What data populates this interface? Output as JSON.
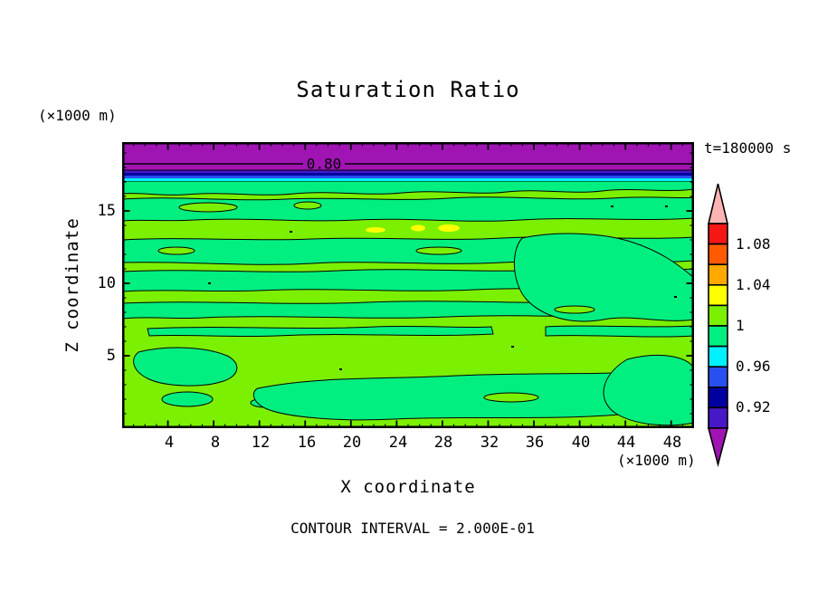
{
  "title": "Saturation Ratio",
  "timestamp": "t=180000 s",
  "contour_label": "0.80",
  "footer_note": "CONTOUR INTERVAL = 2.000E-01",
  "axes": {
    "x": {
      "title": "X coordinate",
      "units": "(×1000 m)",
      "ticks": [
        "4",
        "8",
        "12",
        "16",
        "20",
        "24",
        "28",
        "32",
        "36",
        "40",
        "44",
        "48"
      ]
    },
    "y": {
      "title": "Z coordinate",
      "units": "(×1000 m)",
      "ticks": [
        "15",
        "10",
        "5"
      ]
    }
  },
  "colorbar": {
    "labels": [
      "1.08",
      "1.04",
      "1",
      "0.96",
      "0.92"
    ],
    "segments": [
      {
        "name": "arrow-up",
        "color": "#FFB4B4",
        "range": "> 1.10"
      },
      {
        "name": "red",
        "color": "#F51616",
        "range": "1.08 - 1.10"
      },
      {
        "name": "orange-red",
        "color": "#FF5A00",
        "range": "1.06 - 1.08"
      },
      {
        "name": "orange",
        "color": "#FFA800",
        "range": "1.04 - 1.06"
      },
      {
        "name": "yellow",
        "color": "#FFFF00",
        "range": "1.02 - 1.04"
      },
      {
        "name": "chartreuse",
        "color": "#7BF000",
        "range": "1.00 - 1.02"
      },
      {
        "name": "spring-green",
        "color": "#00EF80",
        "range": "0.98 - 1.00"
      },
      {
        "name": "cyan",
        "color": "#00F0FF",
        "range": "0.96 - 0.98"
      },
      {
        "name": "blue",
        "color": "#2850F0",
        "range": "0.94 - 0.96"
      },
      {
        "name": "navy",
        "color": "#0000A0",
        "range": "0.92 - 0.94"
      },
      {
        "name": "indigo",
        "color": "#4618C8",
        "range": "0.90 - 0.92"
      },
      {
        "name": "arrow-down",
        "color": "#A014B4",
        "range": "< 0.90"
      }
    ]
  },
  "chart_data": {
    "type": "heatmap",
    "subtype": "filled-contour",
    "title": "Saturation Ratio",
    "xlabel": "X coordinate",
    "x_units": "(×1000 m)",
    "ylabel": "Z coordinate",
    "y_units": "(×1000 m)",
    "xlim": [
      0,
      50
    ],
    "ylim": [
      0,
      19.75
    ],
    "x_ticks": [
      4,
      8,
      12,
      16,
      20,
      24,
      28,
      32,
      36,
      40,
      44,
      48
    ],
    "y_ticks": [
      5,
      10,
      15
    ],
    "minor_tick_step": 1,
    "time": "t=180000 s",
    "contour_interval_note": "CONTOUR INTERVAL = 2.000E-01",
    "fill_levels": [
      0.9,
      0.92,
      0.94,
      0.96,
      0.98,
      1.0,
      1.02,
      1.04,
      1.06,
      1.08,
      1.1
    ],
    "labeled_contour": {
      "value": 0.8,
      "x_position": "x≈22",
      "z_position": "z≈18.5"
    },
    "legend_position": "right",
    "grid": false,
    "field_regions": [
      {
        "region": "z ≈ 17.6 – 19.75 (top band)",
        "value": "< 0.90 (purple), 0.80 contour line crossing at z≈18.5"
      },
      {
        "region": "z ≈ 17.0 – 17.6",
        "value": "0.90 – 0.98 thin horizontal transition stripes (indigo, navy, blue, cyan)"
      },
      {
        "region": "z ≈ 0 – 17.0",
        "value": "alternating wavy horizontal bands of 0.98–1.00 (spring green) and 1.00–1.02 (chartreuse); ratio ≈ 1 everywhere"
      },
      {
        "region": "z ≈ 13.8, x ≈ 21 – 29",
        "value": "1.02 – 1.04 (small yellow supersaturation spots)"
      }
    ]
  }
}
